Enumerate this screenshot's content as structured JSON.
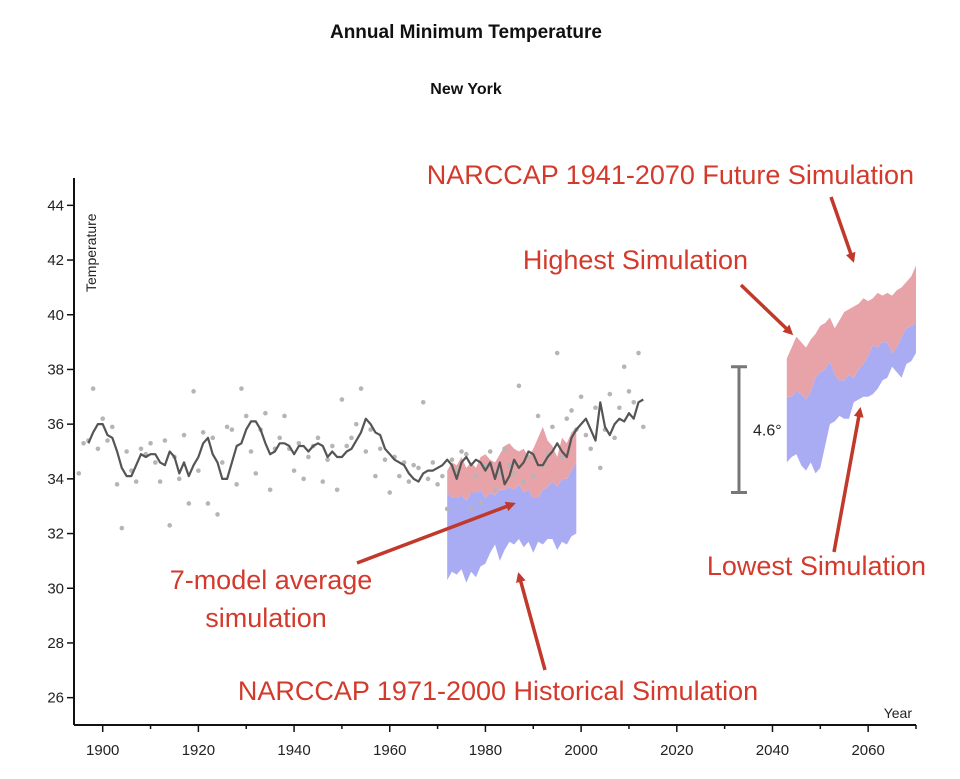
{
  "chart_data": {
    "type": "line",
    "title": "Annual Minimum Temperature",
    "subtitle": "New York",
    "xlabel": "Year",
    "ylabel": "Temperature",
    "xlim": [
      1894,
      2070
    ],
    "ylim": [
      25,
      45
    ],
    "xticks": [
      1900,
      1920,
      1940,
      1960,
      1980,
      2000,
      2020,
      2040,
      2060
    ],
    "yticks": [
      26,
      28,
      30,
      32,
      34,
      36,
      38,
      40,
      42,
      44
    ],
    "observed_points": {
      "x": [
        1895,
        1896,
        1897,
        1898,
        1899,
        1900,
        1901,
        1902,
        1903,
        1904,
        1905,
        1906,
        1907,
        1908,
        1909,
        1910,
        1911,
        1912,
        1913,
        1914,
        1915,
        1916,
        1917,
        1918,
        1919,
        1920,
        1921,
        1922,
        1923,
        1924,
        1925,
        1926,
        1927,
        1928,
        1929,
        1930,
        1931,
        1932,
        1933,
        1934,
        1935,
        1936,
        1937,
        1938,
        1939,
        1940,
        1941,
        1942,
        1943,
        1944,
        1945,
        1946,
        1947,
        1948,
        1949,
        1950,
        1951,
        1952,
        1953,
        1954,
        1955,
        1956,
        1957,
        1958,
        1959,
        1960,
        1961,
        1962,
        1963,
        1964,
        1965,
        1966,
        1967,
        1968,
        1969,
        1970,
        1971,
        1972,
        1973,
        1974,
        1975,
        1976,
        1977,
        1978,
        1979,
        1980,
        1981,
        1982,
        1983,
        1984,
        1985,
        1986,
        1987,
        1988,
        1989,
        1990,
        1991,
        1992,
        1993,
        1994,
        1995,
        1996,
        1997,
        1998,
        1999,
        2000,
        2001,
        2002,
        2003,
        2004,
        2005,
        2006,
        2007,
        2008,
        2009,
        2010,
        2011,
        2012,
        2013
      ],
      "y": [
        34.2,
        35.3,
        35.4,
        37.3,
        35.1,
        36.2,
        35.4,
        35.9,
        33.8,
        32.2,
        35.0,
        34.3,
        33.9,
        35.1,
        34.9,
        35.3,
        34.6,
        33.9,
        35.4,
        32.3,
        34.8,
        34.0,
        35.6,
        33.1,
        37.2,
        34.3,
        35.7,
        33.1,
        35.5,
        32.7,
        34.6,
        35.9,
        35.8,
        33.8,
        37.3,
        36.3,
        35.0,
        34.2,
        35.8,
        36.4,
        33.6,
        35.1,
        35.5,
        36.3,
        35.1,
        34.3,
        35.3,
        34.0,
        34.8,
        35.2,
        35.5,
        33.9,
        34.7,
        35.2,
        33.6,
        36.9,
        35.2,
        35.5,
        36.0,
        37.3,
        35.0,
        35.8,
        34.1,
        35.1,
        34.7,
        33.5,
        34.8,
        34.1,
        34.6,
        33.9,
        34.5,
        34.4,
        36.8,
        34.0,
        34.6,
        33.8,
        34.1,
        32.9,
        34.7,
        34.3,
        35.0,
        34.9,
        32.9,
        34.1,
        33.1,
        34.5,
        35.0,
        33.6,
        34.2,
        35.1,
        34.5,
        34.2,
        37.4,
        33.9,
        34.8,
        34.1,
        36.3,
        34.5,
        34.9,
        35.9,
        38.6,
        34.8,
        36.2,
        36.5,
        35.8,
        37.0,
        35.6,
        35.1,
        36.6,
        34.4,
        35.8,
        37.1,
        35.5,
        36.6,
        38.1,
        37.2,
        36.8,
        38.6,
        35.9
      ]
    },
    "series": [
      {
        "x": [
          1897,
          1898,
          1899,
          1900,
          1901,
          1902,
          1903,
          1904,
          1905,
          1906,
          1907,
          1908,
          1909,
          1910,
          1911,
          1912,
          1913,
          1914,
          1915,
          1916,
          1917,
          1918,
          1919,
          1920,
          1921,
          1922,
          1923,
          1924,
          1925,
          1926,
          1927,
          1928,
          1929,
          1930,
          1931,
          1932,
          1933,
          1934,
          1935,
          1936,
          1937,
          1938,
          1939,
          1940,
          1941,
          1942,
          1943,
          1944,
          1945,
          1946,
          1947,
          1948,
          1949,
          1950,
          1951,
          1952,
          1953,
          1954,
          1955,
          1956,
          1957,
          1958,
          1959,
          1960,
          1961,
          1962,
          1963,
          1964,
          1965,
          1966,
          1967,
          1968,
          1969,
          1970,
          1971,
          1972,
          1973,
          1974,
          1975,
          1976,
          1977,
          1978,
          1979,
          1980,
          1981,
          1982,
          1983,
          1984,
          1985,
          1986,
          1987,
          1988,
          1989,
          1990,
          1991,
          1992,
          1993,
          1994,
          1995,
          1996,
          1997,
          1998,
          1999,
          2000,
          2001,
          2002,
          2003,
          2004,
          2005,
          2006,
          2007,
          2008,
          2009,
          2010,
          2011,
          2012,
          2013
        ],
        "values": [
          35.3,
          35.7,
          36.0,
          36.0,
          35.6,
          35.5,
          35.0,
          34.4,
          34.1,
          34.1,
          34.5,
          34.9,
          34.8,
          34.9,
          34.9,
          34.6,
          34.5,
          35.0,
          34.8,
          34.2,
          34.6,
          34.1,
          34.5,
          34.8,
          35.3,
          35.5,
          34.9,
          34.6,
          34.0,
          34.0,
          34.6,
          35.2,
          35.3,
          35.8,
          36.1,
          36.1,
          35.8,
          35.3,
          34.9,
          35.0,
          35.3,
          35.3,
          35.2,
          34.9,
          35.2,
          35.2,
          35.0,
          35.2,
          35.3,
          35.2,
          34.8,
          35.0,
          34.8,
          34.8,
          35.0,
          35.1,
          35.4,
          35.7,
          36.2,
          36.0,
          35.7,
          35.6,
          35.1,
          34.9,
          34.7,
          34.6,
          34.5,
          34.2,
          34.0,
          33.9,
          34.2,
          34.3,
          34.3,
          34.4,
          34.5,
          34.7,
          34.5,
          34.0,
          34.6,
          34.8,
          34.5,
          34.7,
          34.6,
          34.3,
          34.6,
          34.0,
          34.6,
          33.8,
          34.1,
          34.7,
          34.4,
          34.6,
          35.0,
          34.9,
          34.5,
          34.5,
          34.8,
          35.0,
          35.3,
          35.0,
          34.8,
          35.5,
          35.8,
          36.0,
          36.2,
          35.8,
          35.4,
          36.8,
          35.9,
          35.6,
          36.0,
          36.2,
          36.1,
          36.4,
          36.2,
          36.8,
          36.9
        ]
      }
    ],
    "historical_simulation": {
      "x": [
        1972,
        1973,
        1974,
        1975,
        1976,
        1977,
        1978,
        1979,
        1980,
        1981,
        1982,
        1983,
        1984,
        1985,
        1986,
        1987,
        1988,
        1989,
        1990,
        1991,
        1992,
        1993,
        1994,
        1995,
        1996,
        1997,
        1998,
        1999
      ],
      "low": [
        30.3,
        30.6,
        30.5,
        30.7,
        30.2,
        30.6,
        30.4,
        30.8,
        30.9,
        31.3,
        31.6,
        31.0,
        31.4,
        31.7,
        31.6,
        31.8,
        31.5,
        31.7,
        31.3,
        31.7,
        31.6,
        31.8,
        31.8,
        31.4,
        31.7,
        31.6,
        31.9,
        32.0
      ],
      "average": [
        33.5,
        33.3,
        33.3,
        33.4,
        33.2,
        33.5,
        33.5,
        33.6,
        33.3,
        33.5,
        33.4,
        33.6,
        33.6,
        33.7,
        33.6,
        33.8,
        33.5,
        33.6,
        33.3,
        33.3,
        33.6,
        33.7,
        33.9,
        33.7,
        34.0,
        34.0,
        34.3,
        34.6
      ],
      "high": [
        34.3,
        34.6,
        34.5,
        34.8,
        34.4,
        34.6,
        34.4,
        34.8,
        34.9,
        34.7,
        34.6,
        34.9,
        35.2,
        35.3,
        35.1,
        35.0,
        35.1,
        34.8,
        35.1,
        35.5,
        35.9,
        35.4,
        35.2,
        34.8,
        35.5,
        35.3,
        35.7,
        35.9
      ]
    },
    "future_simulation": {
      "x": [
        2043,
        2044,
        2045,
        2046,
        2047,
        2048,
        2049,
        2050,
        2051,
        2052,
        2053,
        2054,
        2055,
        2056,
        2057,
        2058,
        2059,
        2060,
        2061,
        2062,
        2063,
        2064,
        2065,
        2066,
        2067,
        2068,
        2069,
        2070
      ],
      "low": [
        34.6,
        34.8,
        34.9,
        34.5,
        34.3,
        34.6,
        34.2,
        34.4,
        35.2,
        36.0,
        36.1,
        36.3,
        36.2,
        36.2,
        36.8,
        36.9,
        37.0,
        37.0,
        37.1,
        37.3,
        37.6,
        37.7,
        38.1,
        37.9,
        37.7,
        38.2,
        38.3,
        38.6
      ],
      "average": [
        37.0,
        37.0,
        37.2,
        37.1,
        36.9,
        37.2,
        37.7,
        37.9,
        38.0,
        38.3,
        37.8,
        37.6,
        37.6,
        37.8,
        37.7,
        38.0,
        38.2,
        38.5,
        38.9,
        38.8,
        39.0,
        39.0,
        38.6,
        38.8,
        39.2,
        39.5,
        39.6,
        39.7
      ],
      "high": [
        38.4,
        38.8,
        39.2,
        39.0,
        38.8,
        39.1,
        39.3,
        39.6,
        39.7,
        39.9,
        39.5,
        39.8,
        40.1,
        40.2,
        40.3,
        40.4,
        40.6,
        40.5,
        40.6,
        40.8,
        40.7,
        40.8,
        40.7,
        40.9,
        41.0,
        41.2,
        41.4,
        41.8
      ]
    },
    "range_bar": {
      "x": 2033,
      "low": 33.5,
      "high": 38.1,
      "label": "4.6°"
    },
    "colors": {
      "observed": "#555555",
      "points": "#b5b5b5",
      "warm_band": "#e8a3a8",
      "cool_band": "#a9acf2",
      "annotation": "#d33a2c"
    },
    "grid": false,
    "annotations": [
      {
        "text": "NARCCAP 1941-2070 Future Simulation"
      },
      {
        "text": "Highest Simulation"
      },
      {
        "text": "Lowest Simulation"
      },
      {
        "text": "7-model average"
      },
      {
        "text": "simulation"
      },
      {
        "text": "NARCCAP 1971-2000 Historical Simulation"
      }
    ]
  }
}
